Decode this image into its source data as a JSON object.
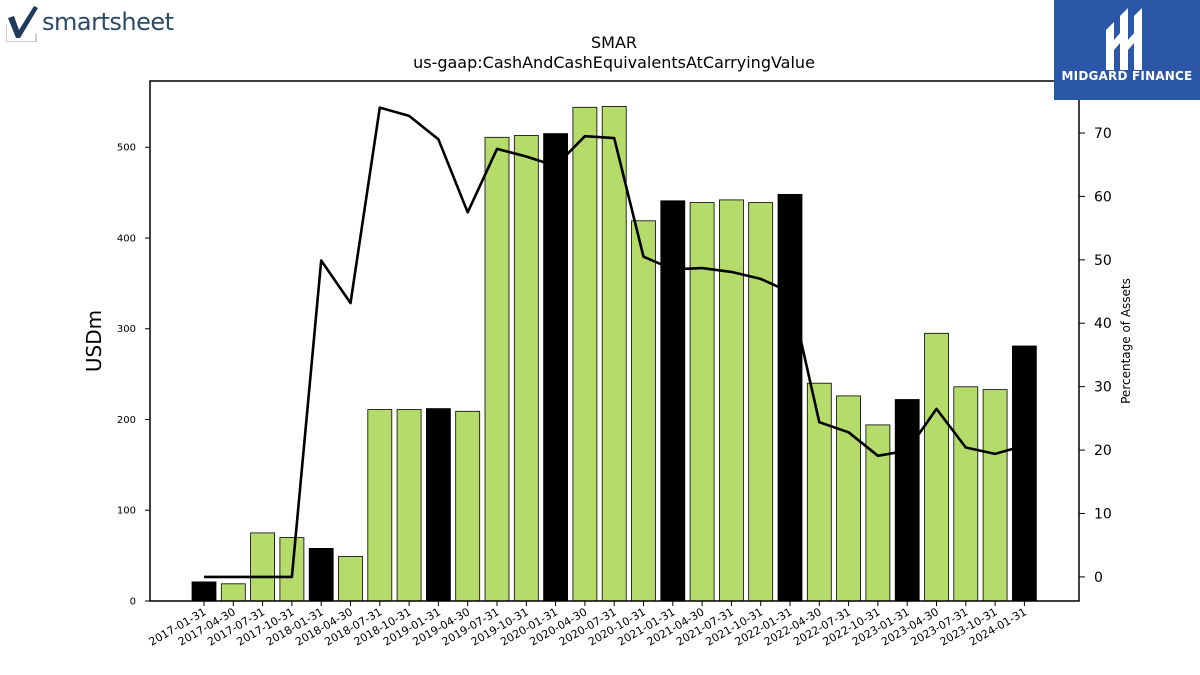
{
  "logos": {
    "left_text": "smartsheet",
    "left_icon": "checkmark-logo-icon",
    "right_text": "MIDGARD FINANCE",
    "right_icon": "midgard-m-logo-icon",
    "right_bg": "#2c56a8"
  },
  "chart_data": {
    "type": "bar",
    "title": "SMAR",
    "subtitle": "us-gaap:CashAndCashEquivalentsAtCarryingValue",
    "ylabel": "USDm",
    "y2label": "Percentage of Assets",
    "ylim": [
      0,
      573
    ],
    "y2lim": [
      -3.8,
      78.2
    ],
    "yticks": [
      0,
      100,
      200,
      300,
      400,
      500
    ],
    "y2ticks": [
      0,
      10,
      20,
      30,
      40,
      50,
      60,
      70
    ],
    "categories": [
      "2017-01-31",
      "2017-04-30",
      "2017-07-31",
      "2017-10-31",
      "2018-01-31",
      "2018-04-30",
      "2018-07-31",
      "2018-10-31",
      "2019-01-31",
      "2019-04-30",
      "2019-07-31",
      "2019-10-31",
      "2020-01-31",
      "2020-04-30",
      "2020-07-31",
      "2020-10-31",
      "2021-01-31",
      "2021-04-30",
      "2021-07-31",
      "2021-10-31",
      "2022-01-31",
      "2022-04-30",
      "2022-07-31",
      "2022-10-31",
      "2023-01-31",
      "2023-04-30",
      "2023-07-31",
      "2023-10-31",
      "2024-01-31"
    ],
    "series": [
      {
        "type": "bar",
        "values": [
          21,
          19,
          75,
          70,
          58,
          49,
          211,
          211,
          212,
          209,
          511,
          513,
          515,
          544,
          545,
          419,
          441,
          439,
          442,
          439,
          448,
          240,
          226,
          194,
          222,
          295,
          236,
          233,
          281
        ],
        "highlight": [
          true,
          false,
          false,
          false,
          true,
          false,
          false,
          false,
          true,
          false,
          false,
          false,
          true,
          false,
          false,
          false,
          true,
          false,
          false,
          false,
          true,
          false,
          false,
          false,
          true,
          false,
          false,
          false,
          true
        ],
        "color": "#b5dc6b",
        "highlight_color": "#000000"
      },
      {
        "type": "line",
        "axis": "right",
        "values": [
          0,
          0,
          0,
          0,
          49.9,
          43.2,
          74.0,
          72.7,
          69.0,
          57.5,
          67.5,
          66.3,
          64.8,
          69.5,
          69.2,
          50.5,
          48.5,
          48.7,
          48.1,
          47.0,
          44.9,
          24.4,
          22.8,
          19.1,
          19.9,
          26.5,
          20.4,
          19.4,
          20.7
        ],
        "color": "#000000"
      }
    ],
    "grid": false
  }
}
